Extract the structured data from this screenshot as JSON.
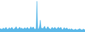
{
  "chart_data": {
    "type": "area",
    "color": "#5bb8e8",
    "values": [
      55,
      60,
      52,
      58,
      65,
      55,
      62,
      70,
      58,
      52,
      60,
      68,
      55,
      65,
      70,
      58,
      52,
      62,
      68,
      75,
      58,
      55,
      65,
      72,
      58,
      65,
      60,
      55,
      62,
      68,
      58,
      62,
      70,
      60,
      55,
      65,
      75,
      62,
      70,
      72,
      58,
      52,
      65,
      290,
      60,
      55,
      78,
      130,
      60,
      65,
      58,
      70,
      80,
      62,
      55,
      70,
      75,
      62,
      58,
      52,
      65,
      70,
      58,
      65,
      70,
      60,
      55,
      65,
      72,
      60,
      65,
      70,
      55,
      50,
      62,
      68,
      55,
      62,
      65,
      55,
      52,
      58,
      50,
      58,
      55,
      50,
      48,
      52,
      55,
      50,
      48,
      52,
      55,
      58,
      52,
      48,
      50,
      55,
      52,
      48
    ],
    "ylim": [
      30,
      300
    ],
    "tick_labels": false,
    "grid": false
  }
}
